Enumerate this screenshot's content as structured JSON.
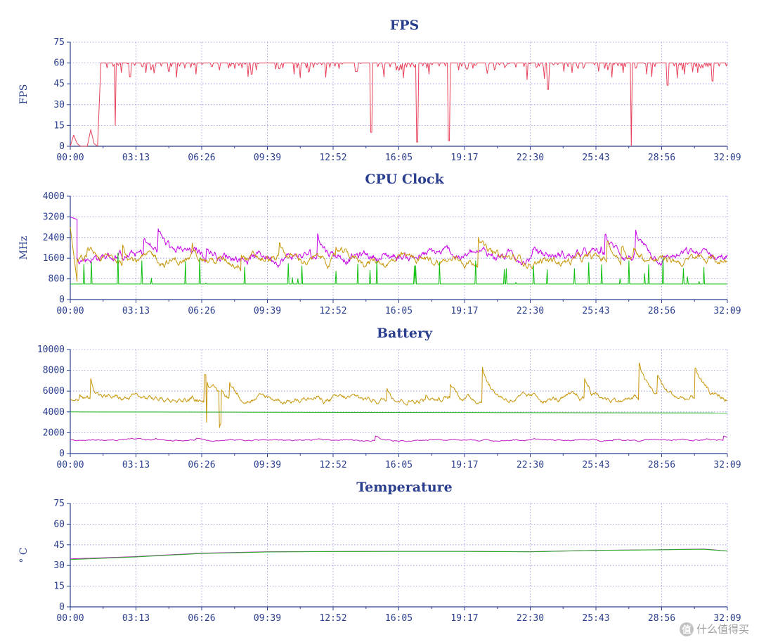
{
  "x_ticks": [
    "00:00",
    "03:13",
    "06:26",
    "09:39",
    "12:52",
    "16:05",
    "19:17",
    "22:30",
    "25:43",
    "28:56",
    "32:09"
  ],
  "watermark": {
    "text": "什么值得买",
    "icon": "zhi-logo-icon"
  },
  "chart_data": [
    {
      "type": "line",
      "title": "FPS",
      "ylabel": "FPS",
      "ylim": [
        0,
        75
      ],
      "yticks": [
        "0",
        "15",
        "30",
        "45",
        "60",
        "75"
      ],
      "xlim_seconds": [
        0,
        1929
      ],
      "series": [
        {
          "color": "#e8415a",
          "baseline": 60,
          "points": [
            [
              0,
              0
            ],
            [
              10,
              8
            ],
            [
              20,
              2
            ],
            [
              30,
              0
            ],
            [
              50,
              0
            ],
            [
              60,
              12
            ],
            [
              70,
              2
            ],
            [
              80,
              0
            ],
            [
              90,
              60
            ],
            [
              1929,
              60
            ]
          ],
          "dips": [
            [
              100,
              48
            ],
            [
              150,
              15
            ],
            [
              200,
              50
            ],
            [
              270,
              55
            ],
            [
              330,
              54
            ],
            [
              420,
              52
            ],
            [
              500,
              55
            ],
            [
              550,
              56
            ],
            [
              610,
              52
            ],
            [
              700,
              56
            ],
            [
              750,
              52
            ],
            [
              800,
              54
            ],
            [
              900,
              56
            ],
            [
              960,
              54
            ],
            [
              1008,
              10
            ],
            [
              1050,
              50
            ],
            [
              1100,
              55
            ],
            [
              1162,
              3
            ],
            [
              1200,
              52
            ],
            [
              1268,
              4
            ],
            [
              1300,
              55
            ],
            [
              1330,
              56
            ],
            [
              1420,
              55
            ],
            [
              1530,
              48
            ],
            [
              1600,
              41
            ],
            [
              1680,
              53
            ],
            [
              1700,
              56
            ],
            [
              1770,
              54
            ],
            [
              1800,
              55
            ],
            [
              1850,
              53
            ],
            [
              1878,
              0
            ],
            [
              1930,
              52
            ],
            [
              2000,
              44
            ],
            [
              2050,
              55
            ],
            [
              2100,
              53
            ],
            [
              2150,
              47
            ]
          ]
        }
      ]
    },
    {
      "type": "line",
      "title": "CPU Clock",
      "ylabel": "MHz",
      "ylim": [
        0,
        4000
      ],
      "yticks": [
        "0",
        "800",
        "1600",
        "2400",
        "3200",
        "4000"
      ],
      "xlim_seconds": [
        0,
        1929
      ],
      "series": [
        {
          "color": "#c800e8",
          "level": 1700,
          "spread": 700,
          "start": [
            [
              0,
              3200
            ],
            [
              20,
              3100
            ]
          ]
        },
        {
          "color": "#c8960a",
          "level": 1500,
          "spread": 650,
          "start": [
            [
              0,
              2800
            ],
            [
              20,
              700
            ]
          ]
        },
        {
          "color": "#10c010",
          "level": 600,
          "spread": 0,
          "spikes": [
            [
              140,
              1800
            ],
            [
              210,
              1500
            ],
            [
              380,
              1600
            ],
            [
              640,
              1400
            ],
            [
              680,
              1300
            ],
            [
              780,
              1100
            ],
            [
              900,
              1500
            ],
            [
              1010,
              1300
            ],
            [
              1190,
              1500
            ],
            [
              1280,
              1200
            ],
            [
              1360,
              1300
            ],
            [
              1480,
              1200
            ],
            [
              1560,
              1350
            ],
            [
              1640,
              1500
            ],
            [
              1740,
              1600
            ],
            [
              1800,
              1200
            ],
            [
              1860,
              1250
            ]
          ]
        }
      ]
    },
    {
      "type": "line",
      "title": "Battery",
      "ylabel": "",
      "ylim": [
        0,
        10000
      ],
      "yticks": [
        "0",
        "2000",
        "4000",
        "6000",
        "8000",
        "10000"
      ],
      "xlim_seconds": [
        0,
        1929
      ],
      "series": [
        {
          "color": "#c8960a",
          "level": 5200,
          "spread": 1100,
          "peaks": [
            [
              60,
              7200
            ],
            [
              395,
              7600
            ],
            [
              400,
              3000
            ],
            [
              438,
              2500
            ],
            [
              1210,
              8300
            ],
            [
              1670,
              8700
            ],
            [
              1510,
              7200
            ],
            [
              1725,
              7500
            ],
            [
              1835,
              8200
            ]
          ]
        },
        {
          "color": "#20b020",
          "points": [
            [
              0,
              4000
            ],
            [
              1929,
              3900
            ]
          ]
        },
        {
          "color": "#c020c0",
          "level": 1300,
          "spread": 250
        }
      ]
    },
    {
      "type": "line",
      "title": "Temperature",
      "ylabel": "° C",
      "ylim": [
        0,
        75
      ],
      "yticks": [
        "0",
        "15",
        "30",
        "45",
        "60",
        "75"
      ],
      "xlim_seconds": [
        0,
        1929
      ],
      "series": [
        {
          "color": "#c020c0",
          "points": [
            [
              0,
              34.8
            ],
            [
              193,
              36.5
            ],
            [
              386,
              39
            ],
            [
              579,
              40
            ],
            [
              772,
              40.2
            ],
            [
              965,
              40.3
            ],
            [
              1157,
              40.3
            ],
            [
              1350,
              40
            ],
            [
              1543,
              41
            ],
            [
              1736,
              41.5
            ],
            [
              1860,
              42
            ],
            [
              1929,
              40.5
            ]
          ]
        },
        {
          "color": "#20b020",
          "points": [
            [
              0,
              34.3
            ],
            [
              193,
              36.2
            ],
            [
              386,
              38.7
            ],
            [
              579,
              39.8
            ],
            [
              772,
              40.1
            ],
            [
              965,
              40.2
            ],
            [
              1157,
              40.2
            ],
            [
              1350,
              39.9
            ],
            [
              1543,
              40.9
            ],
            [
              1736,
              41.4
            ],
            [
              1860,
              41.8
            ],
            [
              1929,
              40.4
            ]
          ]
        }
      ]
    }
  ]
}
